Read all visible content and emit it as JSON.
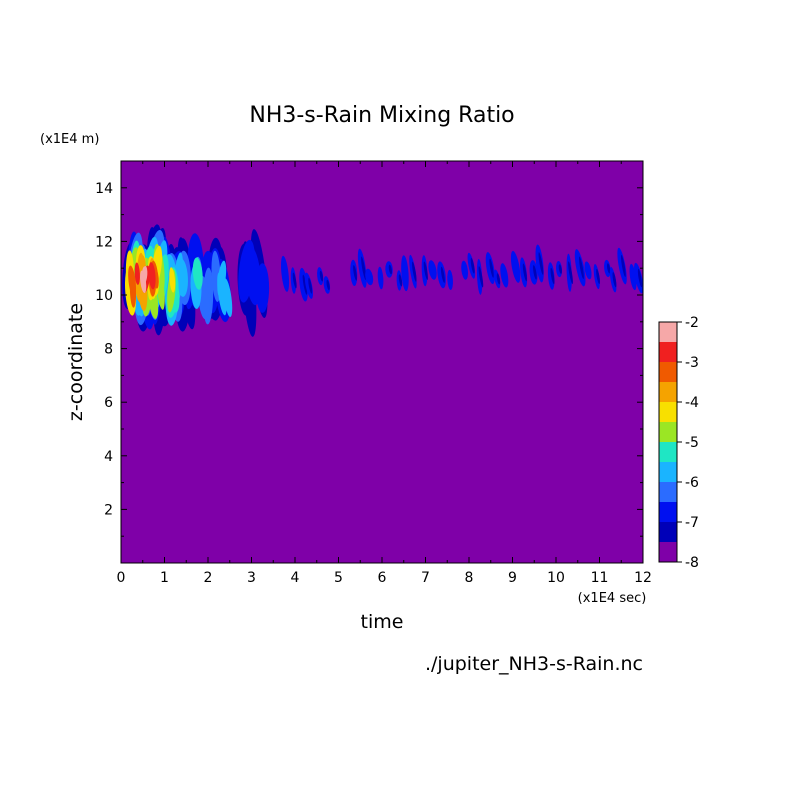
{
  "chart_data": {
    "type": "heatmap",
    "title": "NH3-s-Rain Mixing Ratio",
    "xlabel": "time",
    "ylabel": "z-coordinate",
    "x_unit": "(x1E4 sec)",
    "y_unit": "(x1E4 m)",
    "source_label": "./jupiter_NH3-s-Rain.nc",
    "xlim": [
      0,
      12
    ],
    "ylim": [
      0,
      15
    ],
    "x_ticks": [
      "0",
      "1",
      "2",
      "3",
      "4",
      "5",
      "6",
      "7",
      "8",
      "9",
      "10",
      "11",
      "12"
    ],
    "y_ticks": [
      "2",
      "4",
      "6",
      "8",
      "10",
      "12",
      "14"
    ],
    "background_color": "#7f00a8",
    "colorbar": {
      "levels": [
        "-2",
        "-3",
        "-4",
        "-5",
        "-6",
        "-7",
        "-8"
      ],
      "colors": [
        "#7f00a8",
        "#0000b8",
        "#0010f0",
        "#2b6cff",
        "#1ab4ff",
        "#1fe6c4",
        "#9be624",
        "#f8e000",
        "#f5a300",
        "#f05a00",
        "#f02020",
        "#f6a8a8"
      ]
    },
    "features": [
      {
        "x": 0.5,
        "y": 10.4,
        "level": -2.5
      },
      {
        "x": 0.6,
        "y": 10.8,
        "level": -3.5
      },
      {
        "x": 1.0,
        "y": 10.3,
        "level": -4.5
      },
      {
        "x": 1.5,
        "y": 10.5,
        "level": -5.5
      },
      {
        "x": 2.2,
        "y": 10.3,
        "level": -6.0
      },
      {
        "x": 3.0,
        "y": 10.5,
        "level": -7.0
      },
      {
        "x": 4.3,
        "y": 10.5,
        "level": -7.5
      },
      {
        "x": 6.5,
        "y": 10.8,
        "level": -7.5
      },
      {
        "x": 9.0,
        "y": 10.9,
        "level": -7.5
      },
      {
        "x": 11.5,
        "y": 10.8,
        "level": -7.5
      }
    ]
  }
}
